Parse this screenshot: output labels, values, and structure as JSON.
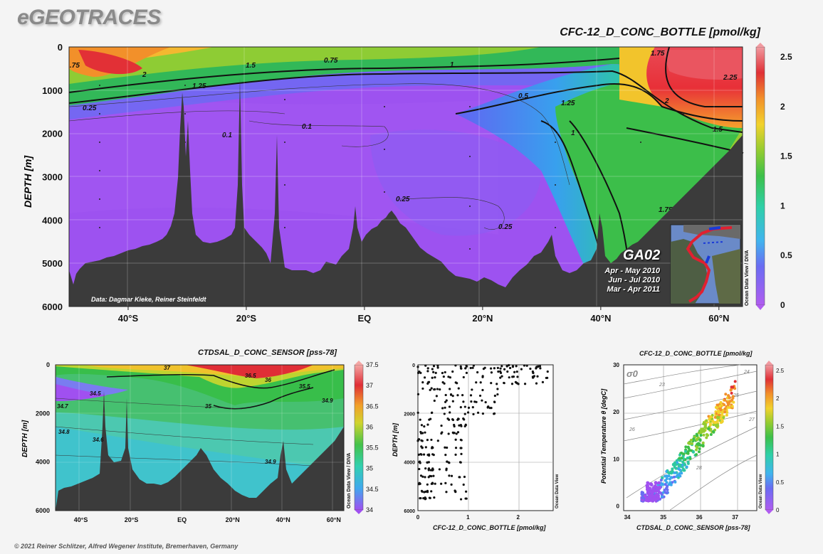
{
  "header": {
    "logo": "eGEOTRACES"
  },
  "footer": {
    "copyright": "© 2021 Reiner Schlitzer, Alfred Wegener Institute, Bremerhaven, Germany"
  },
  "main_section": {
    "title": "CFC-12_D_CONC_BOTTLE [pmol/kg]",
    "ylabel": "DEPTH [m]",
    "credit": "Data: Dagmar Kieke, Reiner Steinfeldt",
    "inset_title": "GA02",
    "cruise_dates": [
      "Apr - May 2010",
      "Jun - Jul 2010",
      "Mar - Apr 2011"
    ],
    "odv_tag": "Ocean Data View / DIVA"
  },
  "chart_data": [
    {
      "type": "heatmap",
      "title": "CFC-12_D_CONC_BOTTLE [pmol/kg]",
      "ylabel": "DEPTH [m]",
      "x_ticks": [
        "40°S",
        "20°S",
        "EQ",
        "20°N",
        "40°N",
        "60°N"
      ],
      "x_tick_values": [
        -40,
        -20,
        0,
        20,
        40,
        60
      ],
      "xlim": [
        -50,
        64
      ],
      "y_ticks": [
        0,
        1000,
        2000,
        3000,
        4000,
        5000,
        6000
      ],
      "ylim": [
        6000,
        0
      ],
      "colorbar": {
        "ticks": [
          0,
          0.5,
          1,
          1.5,
          2,
          2.5
        ],
        "range": [
          0,
          2.6
        ]
      },
      "contour_labels": [
        "2.25",
        "2",
        "1.75",
        "1.5",
        "1.25",
        "1",
        "0.75",
        "0.5",
        "0.25",
        "0.1"
      ],
      "colors": {
        "seafloor": "#3a3a3a",
        "high": "#e0303a",
        "low": "#a450f2"
      }
    },
    {
      "type": "heatmap",
      "title": "CTDSAL_D_CONC_SENSOR [pss-78]",
      "ylabel": "DEPTH [m]",
      "x_ticks": [
        "40°S",
        "20°S",
        "EQ",
        "20°N",
        "40°N",
        "60°N"
      ],
      "x_tick_values": [
        -40,
        -20,
        0,
        20,
        40,
        60
      ],
      "y_ticks": [
        0,
        2000,
        4000,
        6000
      ],
      "ylim": [
        6000,
        0
      ],
      "colorbar": {
        "ticks": [
          34,
          34.5,
          35,
          35.5,
          36,
          36.5,
          37,
          37.5
        ],
        "range": [
          34,
          37.5
        ]
      },
      "contour_labels": [
        "37",
        "36.5",
        "36",
        "35.5",
        "35",
        "34.9",
        "34.8",
        "34.7",
        "34.6",
        "34.5"
      ],
      "odv_tag": "Ocean Data View / DIVA"
    },
    {
      "type": "scatter",
      "xlabel": "CFC-12_D_CONC_BOTTLE [pmol/kg]",
      "ylabel": "DEPTH [m]",
      "x_ticks": [
        0,
        1,
        2
      ],
      "xlim": [
        0,
        2.7
      ],
      "y_ticks": [
        0,
        2000,
        4000,
        6000
      ],
      "ylim": [
        6000,
        0
      ],
      "grid": true,
      "odv_tag": "Ocean Data View"
    },
    {
      "type": "scatter",
      "title": "CFC-12_D_CONC_BOTTLE [pmol/kg]",
      "xlabel": "CTDSAL_D_CONC_SENSOR [pss-78]",
      "ylabel": "Potential Temperature θ [degC]",
      "x_ticks": [
        34,
        35,
        36,
        37
      ],
      "xlim": [
        33.9,
        37.6
      ],
      "y_ticks": [
        0,
        10,
        20,
        30
      ],
      "ylim": [
        -1,
        30
      ],
      "isopycnal_symbol": "σ0",
      "isopycnal_labels": [
        "24",
        "23",
        "25",
        "26",
        "27",
        "28"
      ],
      "colorbar": {
        "ticks": [
          0,
          0.5,
          1,
          1.5,
          2,
          2.5
        ],
        "range": [
          0,
          2.6
        ]
      },
      "odv_tag": "Ocean Data View"
    }
  ]
}
